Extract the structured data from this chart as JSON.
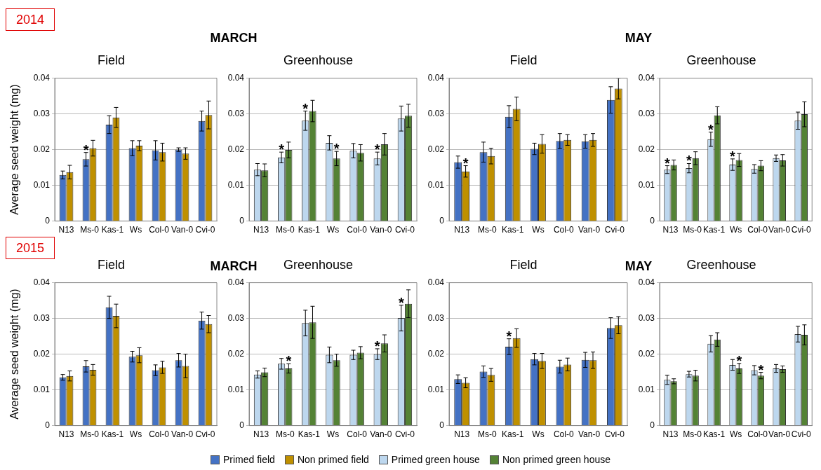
{
  "chart_data": [
    {
      "type": "bar",
      "title": "Field",
      "ylabel": "Average seed weight (mg)",
      "categories": [
        "N13",
        "Ms-0",
        "Kas-1",
        "Ws",
        "Col-0",
        "Van-0",
        "Cvi-0"
      ],
      "ylim": [
        0,
        0.04
      ],
      "yticks": [
        0,
        0.01,
        0.02,
        0.03,
        0.04
      ],
      "grid": "y",
      "legend": "bottom",
      "series": [
        {
          "name": "Primed  field",
          "color": "#4472c4",
          "values": [
            0.0129,
            0.0173,
            0.027,
            0.0204,
            0.0198,
            0.02,
            0.028
          ],
          "errors": [
            0.0011,
            0.0019,
            0.0025,
            0.0021,
            0.0027,
            0.0005,
            0.0028
          ]
        },
        {
          "name": "Non primed field",
          "color": "#bf9000",
          "values": [
            0.0137,
            0.0204,
            0.029,
            0.0211,
            0.0193,
            0.0189,
            0.0297
          ],
          "errors": [
            0.0019,
            0.0022,
            0.0028,
            0.0014,
            0.0025,
            0.0016,
            0.0039
          ]
        }
      ],
      "annotations": [
        "2014",
        "MARCH",
        {
          "text": "*",
          "x": "Ms-0",
          "y": 0.0192
        }
      ]
    },
    {
      "type": "bar",
      "title": "Greenhouse",
      "categories": [
        "N13",
        "Ms-0",
        "Kas-1",
        "Ws",
        "Col-0",
        "Van-0",
        "Cvi-0"
      ],
      "ylim": [
        0,
        0.04
      ],
      "yticks": [
        0,
        0.01,
        0.02,
        0.03,
        0.04
      ],
      "grid": "y",
      "legend": "bottom",
      "series": [
        {
          "name": "Primed green house",
          "color": "#bdd7ee",
          "values": [
            0.0144,
            0.0178,
            0.0281,
            0.0219,
            0.0197,
            0.0175,
            0.0287
          ],
          "errors": [
            0.0017,
            0.0015,
            0.0027,
            0.002,
            0.002,
            0.0018,
            0.0035
          ]
        },
        {
          "name": "Non primed green house",
          "color": "#548235",
          "values": [
            0.0142,
            0.0199,
            0.0308,
            0.0175,
            0.0191,
            0.0215,
            0.0295
          ],
          "errors": [
            0.0018,
            0.0022,
            0.003,
            0.002,
            0.0023,
            0.003,
            0.0032
          ]
        }
      ],
      "annotations": [
        {
          "text": "*",
          "x": "Ms-0",
          "y": 0.0193
        },
        {
          "text": "*",
          "x": "Kas-1",
          "y": 0.0308
        },
        {
          "text": "*",
          "x": "Ws",
          "y": 0.0195
        },
        {
          "text": "*",
          "x": "Van-0",
          "y": 0.0193
        }
      ]
    },
    {
      "type": "bar",
      "title": "Field",
      "categories": [
        "N13",
        "Ms-0",
        "Kas-1",
        "Ws",
        "Col-0",
        "Van-0",
        "Cvi-0"
      ],
      "ylim": [
        0,
        0.04
      ],
      "yticks": [
        0,
        0.01,
        0.02,
        0.03,
        0.04
      ],
      "grid": "y",
      "legend": "bottom",
      "series": [
        {
          "name": "Primed  field",
          "color": "#4472c4",
          "values": [
            0.0165,
            0.0193,
            0.0292,
            0.0202,
            0.0224,
            0.0223,
            0.0339
          ],
          "errors": [
            0.0017,
            0.0028,
            0.0031,
            0.0016,
            0.0021,
            0.0019,
            0.0037
          ]
        },
        {
          "name": "Non primed field",
          "color": "#bf9000",
          "values": [
            0.0139,
            0.0182,
            0.0314,
            0.0216,
            0.0227,
            0.0227,
            0.0371
          ],
          "errors": [
            0.0016,
            0.0022,
            0.0033,
            0.0026,
            0.0015,
            0.0018,
            0.0029
          ]
        }
      ],
      "annotations": [
        "MAY",
        {
          "text": "*",
          "x": "N13",
          "y": 0.0155
        }
      ]
    },
    {
      "type": "bar",
      "title": "Greenhouse",
      "categories": [
        "N13",
        "Ms-0",
        "Kas-1",
        "Ws",
        "Col-0",
        "Van-0",
        "Cvi-0"
      ],
      "ylim": [
        0,
        0.04
      ],
      "yticks": [
        0,
        0.01,
        0.02,
        0.03,
        0.04
      ],
      "grid": "y",
      "legend": "bottom",
      "series": [
        {
          "name": "Primed green house",
          "color": "#bdd7ee",
          "values": [
            0.0144,
            0.0148,
            0.0229,
            0.0158,
            0.0146,
            0.0176,
            0.0281
          ],
          "errors": [
            0.0011,
            0.0013,
            0.002,
            0.0016,
            0.0012,
            0.0009,
            0.0024
          ]
        },
        {
          "name": "Non primed green house",
          "color": "#548235",
          "values": [
            0.0157,
            0.0176,
            0.0296,
            0.0171,
            0.0155,
            0.017,
            0.0299
          ],
          "errors": [
            0.0014,
            0.0018,
            0.0024,
            0.0018,
            0.0014,
            0.0016,
            0.0035
          ]
        }
      ],
      "annotations": [
        {
          "text": "*",
          "x": "N13",
          "y": 0.0155
        },
        {
          "text": "*",
          "x": "Ms-0",
          "y": 0.0161
        },
        {
          "text": "*",
          "x": "Kas-1",
          "y": 0.0249
        },
        {
          "text": "*",
          "x": "Ws",
          "y": 0.0174
        }
      ]
    },
    {
      "type": "bar",
      "title": "Field",
      "ylabel": "Average seed weight (mg)",
      "categories": [
        "N13",
        "Ms-0",
        "Kas-1",
        "Ws",
        "Col-0",
        "Van-0",
        "Cvi-0"
      ],
      "ylim": [
        0,
        0.04
      ],
      "yticks": [
        0,
        0.01,
        0.02,
        0.03,
        0.04
      ],
      "grid": "y",
      "legend": "bottom",
      "series": [
        {
          "name": "Primed  field",
          "color": "#4472c4",
          "values": [
            0.0135,
            0.0166,
            0.0331,
            0.0193,
            0.0155,
            0.0183,
            0.0294
          ],
          "errors": [
            0.0008,
            0.0016,
            0.0031,
            0.0015,
            0.0015,
            0.0019,
            0.0024
          ]
        },
        {
          "name": "Non primed field",
          "color": "#bf9000",
          "values": [
            0.0139,
            0.0156,
            0.0307,
            0.0197,
            0.0163,
            0.0167,
            0.0284
          ],
          "errors": [
            0.0014,
            0.0015,
            0.0033,
            0.0021,
            0.0017,
            0.0033,
            0.0024
          ]
        }
      ],
      "annotations": [
        "2015",
        "MARCH"
      ]
    },
    {
      "type": "bar",
      "title": "Greenhouse",
      "categories": [
        "N13",
        "Ms-0",
        "Kas-1",
        "Ws",
        "Col-0",
        "Van-0",
        "Cvi-0"
      ],
      "ylim": [
        0,
        0.04
      ],
      "yticks": [
        0,
        0.01,
        0.02,
        0.03,
        0.04
      ],
      "grid": "y",
      "legend": "bottom",
      "series": [
        {
          "name": "Primed green house",
          "color": "#bdd7ee",
          "values": [
            0.0143,
            0.0173,
            0.0287,
            0.0198,
            0.0198,
            0.02,
            0.0301
          ],
          "errors": [
            0.001,
            0.0015,
            0.0036,
            0.0022,
            0.0013,
            0.0015,
            0.0036
          ]
        },
        {
          "name": "Non primed green house",
          "color": "#548235",
          "values": [
            0.0149,
            0.016,
            0.0289,
            0.0183,
            0.0204,
            0.023,
            0.0341
          ],
          "errors": [
            0.0012,
            0.0013,
            0.0045,
            0.0017,
            0.0017,
            0.0024,
            0.0039
          ]
        }
      ],
      "annotations": [
        {
          "text": "*",
          "x": "Ms-0",
          "y": 0.0173
        },
        {
          "text": "*",
          "x": "Van-0",
          "y": 0.0215
        },
        {
          "text": "*",
          "x": "Cvi-0",
          "y": 0.0337
        }
      ]
    },
    {
      "type": "bar",
      "title": "Field",
      "categories": [
        "N13",
        "Ms-0",
        "Kas-1",
        "Ws",
        "Col-0",
        "Van-0",
        "Cvi-0"
      ],
      "ylim": [
        0,
        0.04
      ],
      "yticks": [
        0,
        0.01,
        0.02,
        0.03,
        0.04
      ],
      "grid": "y",
      "legend": "bottom",
      "series": [
        {
          "name": "Primed  field",
          "color": "#4472c4",
          "values": [
            0.013,
            0.0151,
            0.0221,
            0.0186,
            0.0165,
            0.0184,
            0.0273
          ],
          "errors": [
            0.0012,
            0.0016,
            0.0022,
            0.0016,
            0.0018,
            0.0021,
            0.0029
          ]
        },
        {
          "name": "Non primed field",
          "color": "#bf9000",
          "values": [
            0.012,
            0.0142,
            0.0245,
            0.0181,
            0.0171,
            0.0183,
            0.0281
          ],
          "errors": [
            0.0014,
            0.0018,
            0.0026,
            0.0021,
            0.0018,
            0.0023,
            0.0024
          ]
        }
      ],
      "annotations": [
        "MAY",
        {
          "text": "*",
          "x": "Kas-1",
          "y": 0.0243
        }
      ]
    },
    {
      "type": "bar",
      "title": "Greenhouse",
      "categories": [
        "N13",
        "Ms-0",
        "Kas-1",
        "Ws",
        "Col-0",
        "Van-0",
        "Cvi-0"
      ],
      "ylim": [
        0,
        0.04
      ],
      "yticks": [
        0,
        0.01,
        0.02,
        0.03,
        0.04
      ],
      "grid": "y",
      "legend": "bottom",
      "series": [
        {
          "name": "Primed green house",
          "color": "#bdd7ee",
          "values": [
            0.0128,
            0.0144,
            0.0229,
            0.017,
            0.0155,
            0.016,
            0.0256
          ],
          "errors": [
            0.0013,
            0.0008,
            0.0023,
            0.0015,
            0.0013,
            0.0011,
            0.0022
          ]
        },
        {
          "name": "Non primed green house",
          "color": "#548235",
          "values": [
            0.0124,
            0.014,
            0.0241,
            0.016,
            0.014,
            0.0158,
            0.0254
          ],
          "errors": [
            0.0007,
            0.0015,
            0.0019,
            0.0014,
            0.0009,
            0.0009,
            0.0028
          ]
        }
      ],
      "annotations": [
        {
          "text": "*",
          "x": "Ws",
          "y": 0.0174
        },
        {
          "text": "*",
          "x": "Col-0",
          "y": 0.0149
        }
      ]
    }
  ]
}
